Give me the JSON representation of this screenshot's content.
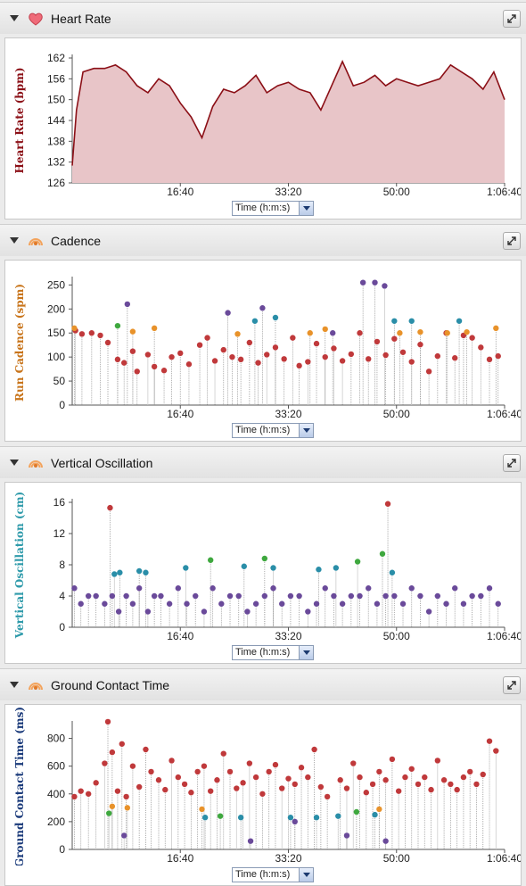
{
  "x_axis": {
    "ticks": [
      "16:40",
      "33:20",
      "50:00",
      "1:06:40"
    ],
    "selector": "Time (h:m:s)"
  },
  "panels": {
    "heart_rate": {
      "title": "Heart Rate",
      "icon": "heart-icon",
      "chart_data": {
        "type": "area",
        "ylabel": "Heart Rate (bpm)",
        "xlabel": "Time (h:m:s)",
        "yticks": [
          "126",
          "132",
          "138",
          "144",
          "150",
          "156",
          "162"
        ],
        "ylim": [
          126,
          162
        ],
        "xlim_seconds": [
          0,
          4000
        ],
        "fill_color": "#e8c5c8",
        "line_color": "#8b0f16",
        "x": [
          0,
          40,
          100,
          200,
          300,
          400,
          500,
          600,
          700,
          800,
          900,
          1000,
          1100,
          1200,
          1300,
          1400,
          1500,
          1600,
          1700,
          1800,
          1900,
          2000,
          2100,
          2200,
          2300,
          2400,
          2500,
          2600,
          2700,
          2800,
          2900,
          3000,
          3100,
          3200,
          3300,
          3400,
          3500,
          3600,
          3700,
          3800,
          3900,
          4000
        ],
        "values": [
          131,
          147,
          158,
          159,
          159,
          160,
          158,
          154,
          152,
          156,
          154,
          149,
          145,
          139,
          148,
          153,
          152,
          154,
          157,
          152,
          154,
          155,
          153,
          152,
          147,
          154,
          161,
          154,
          155,
          157,
          154,
          156,
          155,
          154,
          155,
          156,
          160,
          158,
          156,
          153,
          158,
          150
        ]
      }
    },
    "cadence": {
      "title": "Cadence",
      "icon": "runner-icon",
      "chart_data": {
        "type": "scatter",
        "ylabel": "Run Cadence (spm)",
        "xlabel": "Time (h:m:s)",
        "yticks": [
          "0",
          "50",
          "100",
          "150",
          "200",
          "250"
        ],
        "ylim": [
          0,
          260
        ],
        "xlim_seconds": [
          0,
          4000
        ],
        "label_color": "#c8741a",
        "series": [
          {
            "color": "#c0393b",
            "x": [
              30,
              90,
              180,
              260,
              330,
              420,
              480,
              560,
              600,
              700,
              760,
              850,
              920,
              1000,
              1080,
              1180,
              1250,
              1320,
              1400,
              1480,
              1560,
              1640,
              1720,
              1800,
              1880,
              1960,
              2040,
              2100,
              2180,
              2260,
              2340,
              2420,
              2500,
              2580,
              2660,
              2740,
              2820,
              2900,
              2980,
              3060,
              3140,
              3220,
              3300,
              3380,
              3460,
              3540,
              3620,
              3700,
              3780,
              3860,
              3940
            ],
            "y": [
              155,
              148,
              150,
              145,
              130,
              95,
              88,
              112,
              70,
              105,
              80,
              72,
              100,
              108,
              85,
              125,
              140,
              92,
              115,
              100,
              95,
              130,
              88,
              105,
              120,
              96,
              140,
              82,
              90,
              128,
              100,
              118,
              92,
              106,
              150,
              96,
              132,
              104,
              138,
              110,
              90,
              126,
              70,
              102,
              150,
              98,
              145,
              140,
              120,
              95,
              102
            ]
          },
          {
            "color": "#e8922a",
            "x": [
              20,
              560,
              760,
              1530,
              2200,
              2340,
              3030,
              3220,
              3470,
              3650,
              3920
            ],
            "y": [
              160,
              153,
              160,
              148,
              150,
              158,
              150,
              152,
              150,
              152,
              160
            ]
          },
          {
            "color": "#3fa83f",
            "x": [
              420
            ],
            "y": [
              165
            ]
          },
          {
            "color": "#2a8ea8",
            "x": [
              1690,
              1880,
              2980,
              3140,
              3580
            ],
            "y": [
              175,
              182,
              175,
              175,
              175
            ]
          },
          {
            "color": "#6a4a9a",
            "x": [
              510,
              1440,
              1760,
              2410,
              2690,
              2800,
              2890
            ],
            "y": [
              210,
              192,
              202,
              150,
              255,
              255,
              248
            ]
          }
        ]
      }
    },
    "vertical_oscillation": {
      "title": "Vertical Oscillation",
      "icon": "runner-icon",
      "chart_data": {
        "type": "scatter",
        "ylabel": "Vertical Oscillation (cm)",
        "xlabel": "Time (h:m:s)",
        "yticks": [
          "0",
          "4",
          "8",
          "12",
          "16"
        ],
        "ylim": [
          0,
          16
        ],
        "xlim_seconds": [
          0,
          4000
        ],
        "label_color": "#2e9aaa",
        "series": [
          {
            "color": "#6a4a9a",
            "x": [
              20,
              80,
              150,
              220,
              300,
              370,
              430,
              500,
              560,
              620,
              700,
              760,
              820,
              900,
              980,
              1060,
              1140,
              1220,
              1300,
              1380,
              1460,
              1540,
              1620,
              1700,
              1780,
              1860,
              1940,
              2020,
              2100,
              2180,
              2260,
              2340,
              2420,
              2500,
              2580,
              2660,
              2740,
              2820,
              2900,
              2980,
              3060,
              3140,
              3220,
              3300,
              3380,
              3460,
              3540,
              3620,
              3700,
              3780,
              3860,
              3940
            ],
            "y": [
              5,
              3,
              4,
              4,
              3,
              4,
              2,
              4,
              3,
              5,
              2,
              4,
              4,
              3,
              5,
              3,
              4,
              2,
              5,
              3,
              4,
              4,
              2,
              3,
              4,
              5,
              3,
              4,
              4,
              2,
              3,
              5,
              4,
              3,
              4,
              4,
              5,
              3,
              4,
              4,
              3,
              5,
              4,
              2,
              4,
              3,
              5,
              3,
              4,
              4,
              5,
              3
            ]
          },
          {
            "color": "#c0393b",
            "x": [
              350,
              2920
            ],
            "y": [
              15.3,
              15.8
            ]
          },
          {
            "color": "#2a8ea8",
            "x": [
              390,
              440,
              620,
              680,
              1050,
              1590,
              1860,
              2280,
              2440,
              2960
            ],
            "y": [
              6.8,
              7,
              7.2,
              7,
              7.6,
              7.8,
              7.6,
              7.4,
              7.6,
              7
            ]
          },
          {
            "color": "#3fa83f",
            "x": [
              1280,
              1780,
              2640,
              2870
            ],
            "y": [
              8.6,
              8.8,
              8.4,
              9.4
            ]
          }
        ]
      }
    },
    "ground_contact_time": {
      "title": "Ground Contact Time",
      "icon": "runner-icon",
      "chart_data": {
        "type": "scatter",
        "ylabel": "Ground Contact Time (ms)",
        "xlabel": "Time (h:m:s)",
        "yticks": [
          "0",
          "200",
          "400",
          "600",
          "800"
        ],
        "ylim": [
          0,
          900
        ],
        "xlim_seconds": [
          0,
          4000
        ],
        "label_color": "#1a3a7a",
        "series": [
          {
            "color": "#c0393b",
            "x": [
              20,
              80,
              150,
              220,
              300,
              330,
              370,
              420,
              460,
              500,
              560,
              620,
              680,
              730,
              800,
              860,
              920,
              980,
              1040,
              1100,
              1160,
              1220,
              1280,
              1340,
              1400,
              1460,
              1520,
              1580,
              1640,
              1700,
              1760,
              1820,
              1880,
              1940,
              2000,
              2060,
              2120,
              2180,
              2240,
              2300,
              2360,
              2480,
              2540,
              2600,
              2660,
              2720,
              2780,
              2840,
              2900,
              2960,
              3020,
              3080,
              3140,
              3200,
              3260,
              3320,
              3380,
              3440,
              3500,
              3560,
              3620,
              3680,
              3740,
              3800,
              3860,
              3920
            ],
            "y": [
              380,
              420,
              400,
              480,
              620,
              920,
              700,
              420,
              760,
              380,
              600,
              450,
              720,
              560,
              500,
              430,
              640,
              520,
              470,
              410,
              560,
              600,
              420,
              500,
              690,
              560,
              440,
              480,
              620,
              520,
              400,
              560,
              610,
              440,
              510,
              470,
              590,
              520,
              720,
              450,
              380,
              500,
              440,
              620,
              520,
              410,
              470,
              560,
              500,
              650,
              420,
              520,
              580,
              470,
              520,
              430,
              640,
              500,
              470,
              430,
              520,
              560,
              470,
              540,
              780,
              710
            ]
          },
          {
            "color": "#e8922a",
            "x": [
              370,
              510,
              1200,
              2840
            ],
            "y": [
              310,
              300,
              290,
              290
            ]
          },
          {
            "color": "#3fa83f",
            "x": [
              340,
              1370,
              2630
            ],
            "y": [
              260,
              240,
              270
            ]
          },
          {
            "color": "#2a8ea8",
            "x": [
              1230,
              1560,
              2020,
              2260,
              2460,
              2800
            ],
            "y": [
              230,
              230,
              230,
              230,
              240,
              250
            ]
          },
          {
            "color": "#6a4a9a",
            "x": [
              480,
              1650,
              2060,
              2540,
              2900
            ],
            "y": [
              100,
              60,
              200,
              100,
              60
            ]
          }
        ]
      }
    }
  }
}
